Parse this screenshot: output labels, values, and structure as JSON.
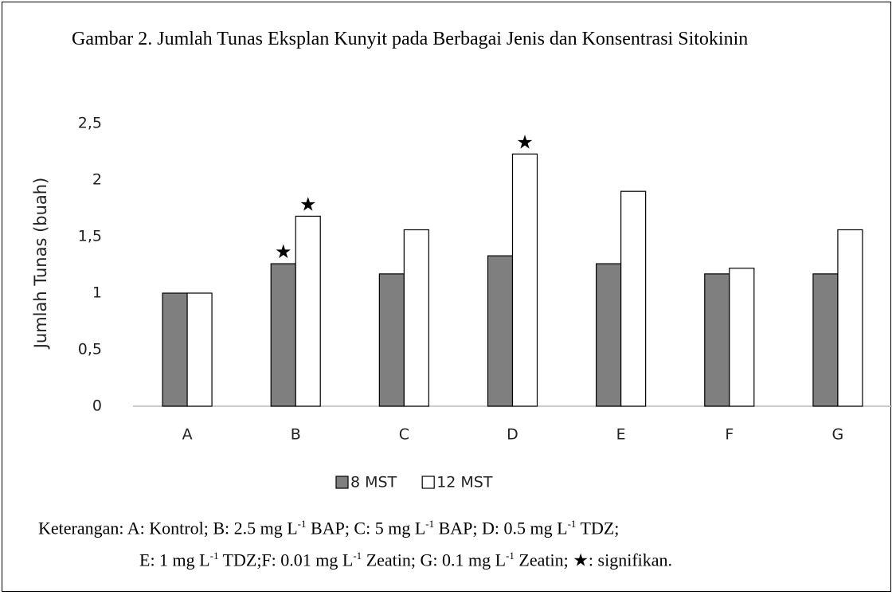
{
  "chart_data": {
    "type": "bar",
    "title": "Gambar 2. Jumlah Tunas Eksplan Kunyit pada Berbagai Jenis dan Konsentrasi Sitokinin",
    "ylabel": "Jumlah Tunas (buah)",
    "categories": [
      "A",
      "B",
      "C",
      "D",
      "E",
      "F",
      "G"
    ],
    "series": [
      {
        "name": "8 MST",
        "color": "#7f7f7f",
        "values": [
          1,
          1.26,
          1.17,
          1.33,
          1.26,
          1.17,
          1.17
        ]
      },
      {
        "name": "12 MST",
        "color": "#ffffff",
        "values": [
          1,
          1.68,
          1.56,
          2.23,
          1.9,
          1.22,
          1.56
        ]
      }
    ],
    "ylim": [
      0,
      2.5
    ],
    "yticks": [
      0,
      {
        "value": 0.5,
        "label": "0,5"
      },
      1,
      {
        "value": 1.5,
        "label": "1,5"
      },
      2,
      {
        "value": 2.5,
        "label": "2,5"
      }
    ],
    "grid": false,
    "legend": "bottom",
    "annotations": [
      {
        "text": "★",
        "series": 0,
        "category": 1
      },
      {
        "text": "★",
        "series": 1,
        "category": 1
      },
      {
        "text": "★",
        "series": 1,
        "category": 3
      }
    ],
    "caption": [
      [
        "Keterangan: A: Kontrol; B: 2.5 mg L",
        {
          "sup": "-1"
        },
        " BAP; C: 5 mg L",
        {
          "sup": "-1"
        },
        " BAP; D: 0.5 mg L",
        {
          "sup": "-1"
        },
        " TDZ;"
      ],
      [
        "E: 1 mg L",
        {
          "sup": "-1"
        },
        " TDZ;F: 0.01 mg L",
        {
          "sup": "-1"
        },
        " Zeatin; G: 0.1 mg L",
        {
          "sup": "-1"
        },
        " Zeatin; ★: signifikan."
      ]
    ]
  }
}
